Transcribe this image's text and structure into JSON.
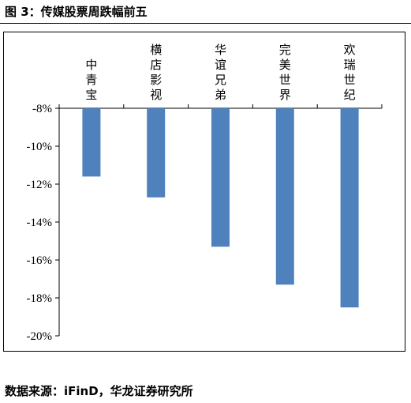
{
  "figure": {
    "title": "图 3：传媒股票周跌幅前五",
    "source": "数据来源：iFinD，华龙证券研究所"
  },
  "chart_data": {
    "type": "bar",
    "categories": [
      "中青宝",
      "横店影视",
      "华谊兄弟",
      "完美世界",
      "欢瑞世纪"
    ],
    "values": [
      -11.6,
      -12.7,
      -15.3,
      -17.3,
      -18.5
    ],
    "unit": "%",
    "ylim": [
      -20,
      -8
    ],
    "yticks": [
      -8,
      -10,
      -12,
      -14,
      -16,
      -18,
      -20
    ],
    "ytick_labels": [
      "-8%",
      "-10%",
      "-12%",
      "-14%",
      "-16%",
      "-18%",
      "-20%"
    ],
    "bar_color": "#4f81bd",
    "grid": false,
    "legend": "none",
    "category_label_position": "top",
    "title": "",
    "xlabel": "",
    "ylabel": ""
  }
}
